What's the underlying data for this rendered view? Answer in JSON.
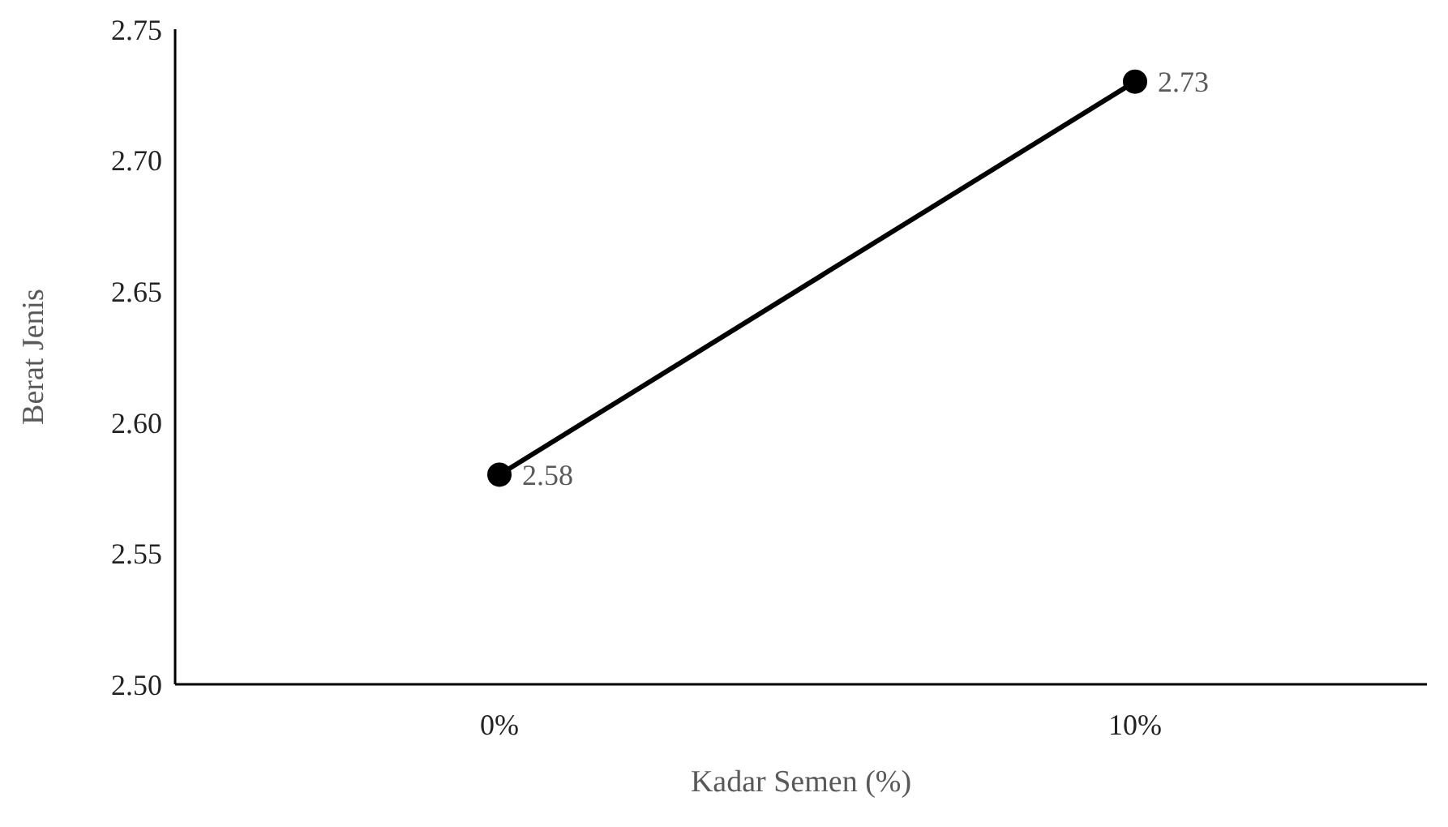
{
  "chart_data": {
    "type": "line",
    "xlabel": "Kadar Semen (%)",
    "ylabel": "Berat Jenis",
    "categories": [
      "0%",
      "10%"
    ],
    "series": [
      {
        "color": "#000000",
        "values": [
          2.58,
          2.73
        ]
      }
    ],
    "ylim": [
      2.5,
      2.75
    ],
    "yticks": [
      {
        "value": 2.5,
        "label": "2.50"
      },
      {
        "value": 2.55,
        "label": "2.55"
      },
      {
        "value": 2.6,
        "label": "2.60"
      },
      {
        "value": 2.65,
        "label": "2.65"
      },
      {
        "value": 2.7,
        "label": "2.70"
      },
      {
        "value": 2.75,
        "label": "2.75"
      }
    ],
    "grid": false,
    "legend": false,
    "marker": "circle",
    "line_style": "solid",
    "data_labels": true
  }
}
